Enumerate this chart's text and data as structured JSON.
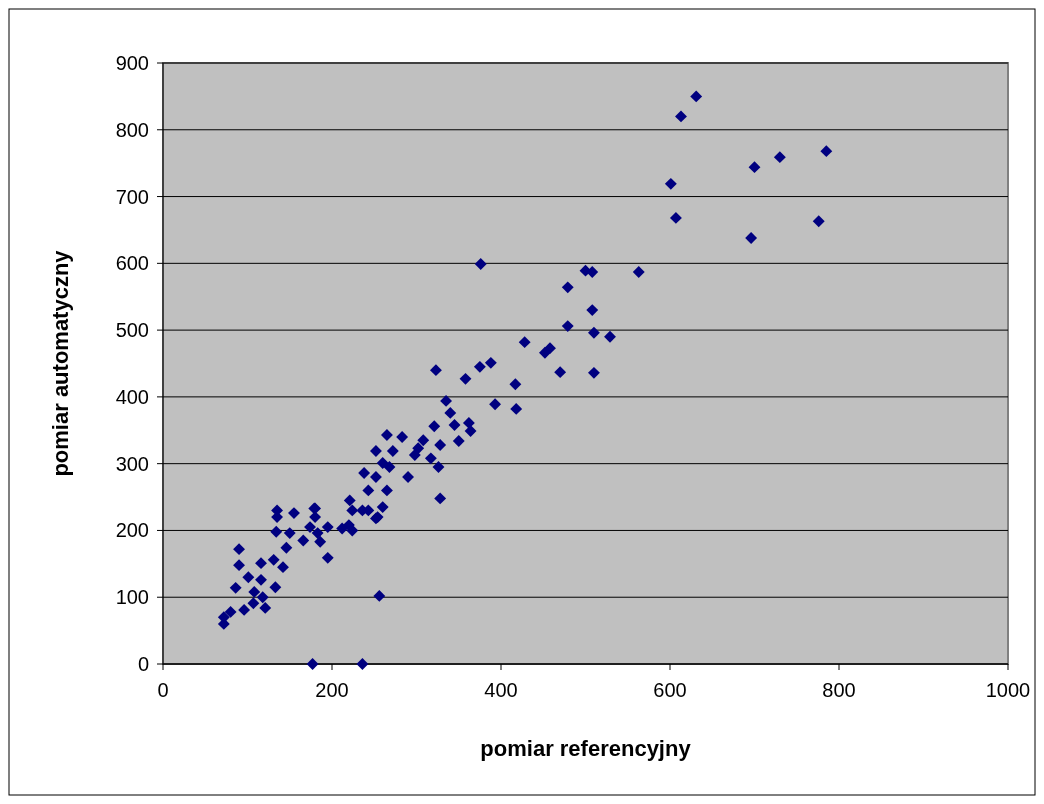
{
  "chart_data": {
    "type": "scatter",
    "xlabel": "pomiar referencyjny",
    "ylabel": "pomiar automatyczny",
    "xlim": [
      0,
      1000
    ],
    "xticks": [
      0,
      200,
      400,
      600,
      800,
      1000
    ],
    "ylim": [
      0,
      900
    ],
    "yticks": [
      0,
      100,
      200,
      300,
      400,
      500,
      600,
      700,
      800,
      900
    ],
    "grid": "y",
    "marker": "diamond",
    "series": [
      {
        "color": "#000080",
        "x": [
          631,
          613,
          601,
          607,
          700,
          730,
          785,
          776,
          696,
          376,
          563,
          500,
          508,
          479,
          508,
          479,
          510,
          529,
          510,
          428,
          458,
          452,
          470,
          388,
          375,
          358,
          323,
          417,
          393,
          418,
          335,
          340,
          345,
          362,
          364,
          321,
          350,
          265,
          283,
          252,
          272,
          308,
          302,
          298,
          328,
          317,
          326,
          260,
          268,
          238,
          252,
          290,
          243,
          265,
          328,
          260,
          236,
          221,
          254,
          224,
          155,
          179,
          135,
          135,
          180,
          180,
          134,
          150,
          166,
          183,
          186,
          195,
          174,
          90,
          195,
          146,
          131,
          142,
          116,
          90,
          101,
          116,
          133,
          86,
          108,
          118,
          107,
          96,
          121,
          80,
          72,
          72,
          256,
          177,
          236,
          220,
          224,
          212,
          252,
          243
        ],
        "values": [
          850,
          820,
          719,
          668,
          744,
          759,
          768,
          663,
          638,
          599,
          587,
          589,
          587,
          564,
          530,
          506,
          496,
          490,
          436,
          482,
          473,
          466,
          437,
          451,
          445,
          427,
          440,
          419,
          389,
          382,
          394,
          376,
          358,
          361,
          349,
          356,
          334,
          343,
          340,
          319,
          319,
          335,
          323,
          313,
          328,
          308,
          295,
          301,
          295,
          286,
          280,
          280,
          260,
          260,
          248,
          235,
          230,
          245,
          220,
          230,
          226,
          233,
          230,
          220,
          233,
          220,
          198,
          196,
          185,
          196,
          183,
          205,
          205,
          172,
          159,
          174,
          156,
          145,
          151,
          148,
          130,
          126,
          115,
          114,
          108,
          100,
          91,
          81,
          84,
          78,
          70,
          60,
          102,
          0,
          0,
          208,
          200,
          203,
          218,
          230
        ]
      }
    ]
  }
}
